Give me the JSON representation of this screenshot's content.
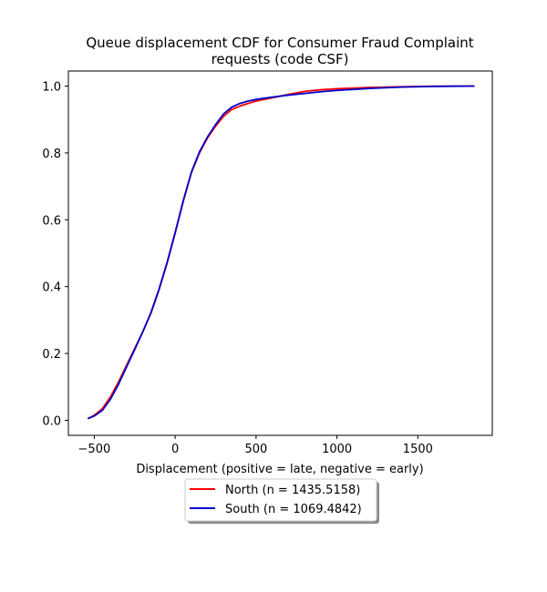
{
  "chart_data": {
    "type": "line",
    "title": "Queue displacement CDF for Consumer Fraud Complaint requests (code CSF)",
    "title_lines": [
      "Queue displacement CDF for Consumer Fraud Complaint",
      "requests (code CSF)"
    ],
    "xlabel": "Displacement (positive = late, negative = early)",
    "ylabel": "",
    "xlim": [
      -660,
      1960
    ],
    "ylim": [
      -0.045,
      1.045
    ],
    "xticks": [
      -500,
      0,
      500,
      1000,
      1500
    ],
    "yticks": [
      0.0,
      0.2,
      0.4,
      0.6,
      0.8,
      1.0
    ],
    "ytick_labels": [
      "0.0",
      "0.2",
      "0.4",
      "0.6",
      "0.8",
      "1.0"
    ],
    "grid": false,
    "legend_placement": "below plot, centered",
    "series": [
      {
        "name": "North (n = 1435.5158)",
        "color": "#ff0000",
        "x": [
          -540,
          -500,
          -450,
          -400,
          -350,
          -300,
          -250,
          -200,
          -150,
          -100,
          -50,
          0,
          50,
          100,
          150,
          200,
          250,
          300,
          350,
          400,
          450,
          500,
          600,
          700,
          800,
          900,
          1000,
          1100,
          1200,
          1300,
          1400,
          1500,
          1600,
          1700,
          1850
        ],
        "y": [
          0.005,
          0.015,
          0.035,
          0.07,
          0.115,
          0.165,
          0.215,
          0.265,
          0.32,
          0.39,
          0.47,
          0.56,
          0.655,
          0.74,
          0.8,
          0.845,
          0.88,
          0.91,
          0.93,
          0.94,
          0.948,
          0.955,
          0.965,
          0.975,
          0.984,
          0.989,
          0.992,
          0.994,
          0.996,
          0.997,
          0.998,
          0.999,
          0.9995,
          0.9998,
          1.0
        ]
      },
      {
        "name": "South (n = 1069.4842)",
        "color": "#0000cc",
        "x": [
          -540,
          -500,
          -450,
          -400,
          -350,
          -300,
          -250,
          -200,
          -150,
          -100,
          -50,
          0,
          50,
          100,
          150,
          200,
          250,
          300,
          350,
          400,
          450,
          500,
          600,
          700,
          800,
          900,
          1000,
          1100,
          1200,
          1300,
          1400,
          1500,
          1600,
          1700,
          1850
        ],
        "y": [
          0.005,
          0.013,
          0.03,
          0.063,
          0.108,
          0.16,
          0.212,
          0.265,
          0.322,
          0.392,
          0.472,
          0.562,
          0.657,
          0.742,
          0.803,
          0.848,
          0.885,
          0.917,
          0.937,
          0.948,
          0.955,
          0.96,
          0.967,
          0.973,
          0.978,
          0.983,
          0.987,
          0.99,
          0.993,
          0.995,
          0.997,
          0.998,
          0.999,
          0.9995,
          1.0
        ]
      }
    ]
  }
}
